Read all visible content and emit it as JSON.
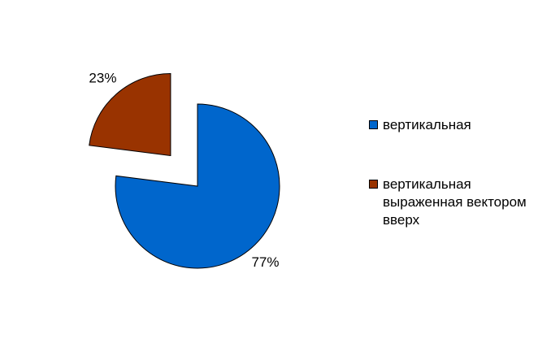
{
  "chart_data": {
    "type": "pie",
    "categories": [
      "вертикальная",
      "вертикальная выраженная вектором вверх"
    ],
    "values": [
      77,
      23
    ],
    "value_labels": [
      "77%",
      "23%"
    ],
    "colors": [
      "#0066cc",
      "#993300"
    ],
    "exploded": [
      false,
      true
    ]
  }
}
